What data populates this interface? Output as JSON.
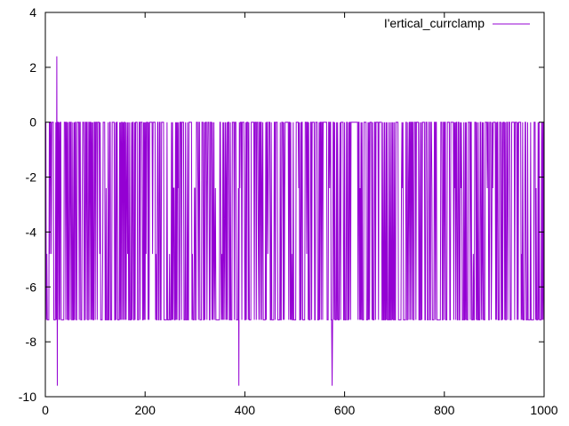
{
  "chart_data": {
    "type": "line",
    "title": "",
    "xlabel": "",
    "ylabel": "",
    "xlim": [
      0,
      1000
    ],
    "ylim": [
      -10,
      4
    ],
    "x_ticks": [
      "0",
      "200",
      "400",
      "600",
      "800",
      "1000"
    ],
    "y_ticks": [
      "4",
      "2",
      "0",
      "-2",
      "-4",
      "-6",
      "-8",
      "-10"
    ],
    "grid": false,
    "legend": {
      "placement": "top-right"
    },
    "series": [
      {
        "name": "I'ertical_currclamp",
        "color": "#9400d3",
        "x_start": 0,
        "x_step": 1,
        "levels_mV": {
          "high": 0,
          "low": -7.2,
          "mid_low": -4.8,
          "mid_high": -2.4
        },
        "spikes": [
          {
            "x": 23,
            "y": 2.4
          },
          {
            "x": 24,
            "y": -9.6
          },
          {
            "x": 388,
            "y": -9.6
          },
          {
            "x": 575,
            "y": -9.6
          }
        ]
      }
    ]
  }
}
